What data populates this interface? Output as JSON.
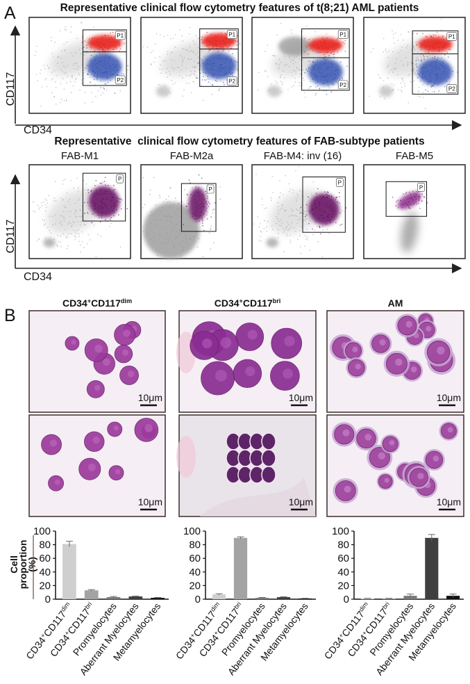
{
  "panel_a": {
    "label": "A",
    "rows": [
      {
        "title": "Representative clinical flow cytometry features of t(8;21) AML patients",
        "y_label": "CD117",
        "x_label": "CD34",
        "plots": [
          {
            "gates": [
              "P1",
              "P2"
            ]
          },
          {
            "gates": [
              "P1",
              "P2"
            ]
          },
          {
            "gates": [
              "P1",
              "P2"
            ]
          },
          {
            "gates": [
              "P1",
              "P2"
            ]
          }
        ]
      },
      {
        "title": "Representative  clinical flow cytometry features of FAB-subtype patients",
        "y_label": "CD117",
        "x_label": "CD34",
        "plots": [
          {
            "title": "FAB-M1",
            "gates": [
              "P"
            ]
          },
          {
            "title": "FAB-M2a",
            "gates": [
              "P"
            ]
          },
          {
            "title": "FAB-M4: inv (16)",
            "gates": [
              "P"
            ]
          },
          {
            "title": "FAB-M5",
            "gates": [
              "P"
            ]
          }
        ]
      }
    ]
  },
  "panel_b": {
    "label": "B",
    "columns": [
      {
        "title": [
          {
            "text": "CD34",
            "sup": "+"
          },
          {
            "text": "CD117",
            "sup": "dim"
          }
        ],
        "images": [
          {
            "scale": "10μm"
          },
          {
            "scale": "10μm"
          }
        ]
      },
      {
        "title": [
          {
            "text": "CD34",
            "sup": "+"
          },
          {
            "text": "CD117",
            "sup": "bri"
          }
        ],
        "images": [
          {
            "scale": "10μm"
          },
          {
            "scale": "10μm"
          }
        ]
      },
      {
        "title": [
          {
            "text": "AM"
          }
        ],
        "images": [
          {
            "scale": "10μm"
          },
          {
            "scale": "10μm"
          }
        ]
      }
    ]
  },
  "chart_data": [
    {
      "type": "bar",
      "ylabel": [
        "Cell",
        "proportion",
        "(%)"
      ],
      "categories": [
        [
          {
            "text": "CD34",
            "sup": "+"
          },
          {
            "text": "CD117",
            "sup": "dim"
          }
        ],
        [
          {
            "text": "CD34",
            "sup": "+"
          },
          {
            "text": "CD117",
            "sup": "bri"
          }
        ],
        "Promyelocytes",
        "Aberrant Myelocytes",
        "Metamyelocytes"
      ],
      "values": [
        81,
        13,
        3,
        4,
        2
      ],
      "errors": [
        4,
        1,
        1,
        0.5,
        0.5
      ],
      "colors": [
        "#cfcfcf",
        "#a3a3a3",
        "#7a7a7a",
        "#3f3f3f",
        "#111111"
      ],
      "ylim": [
        0,
        100
      ],
      "yticks": [
        0,
        20,
        40,
        60,
        80,
        100
      ]
    },
    {
      "type": "bar",
      "categories": [
        [
          {
            "text": "CD34",
            "sup": "+"
          },
          {
            "text": "CD117",
            "sup": "dim"
          }
        ],
        [
          {
            "text": "CD34",
            "sup": "+"
          },
          {
            "text": "CD117",
            "sup": "bri"
          }
        ],
        "Promyelocytes",
        "Aberrant Myelocytes",
        "Metamyelocytes"
      ],
      "values": [
        7,
        90,
        2,
        3,
        1
      ],
      "errors": [
        1,
        1.5,
        0.5,
        0.5,
        0.3
      ],
      "colors": [
        "#cfcfcf",
        "#a3a3a3",
        "#7a7a7a",
        "#3f3f3f",
        "#111111"
      ],
      "ylim": [
        0,
        100
      ],
      "yticks": [
        0,
        20,
        40,
        60,
        80,
        100
      ]
    },
    {
      "type": "bar",
      "categories": [
        [
          {
            "text": "CD34",
            "sup": "+"
          },
          {
            "text": "CD117",
            "sup": "dim"
          }
        ],
        [
          {
            "text": "CD34",
            "sup": "+"
          },
          {
            "text": "CD117",
            "sup": "bri"
          }
        ],
        "Promyelocytes",
        "Aberrant Myelocytes",
        "Metamyelocytes"
      ],
      "values": [
        1,
        1,
        5,
        90,
        5
      ],
      "errors": [
        0.3,
        0.3,
        2.5,
        5,
        2.5
      ],
      "colors": [
        "#cfcfcf",
        "#a3a3a3",
        "#7a7a7a",
        "#3f3f3f",
        "#111111"
      ],
      "ylim": [
        0,
        100
      ],
      "yticks": [
        0,
        20,
        40,
        60,
        80,
        100
      ]
    }
  ]
}
